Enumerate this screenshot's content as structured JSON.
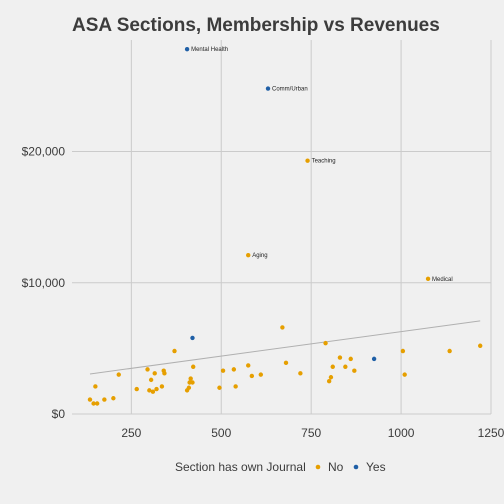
{
  "chart_data": {
    "type": "scatter",
    "title": "ASA Sections, Membership vs Revenues",
    "xlabel": "",
    "ylabel": "",
    "xlim": [
      85,
      1250
    ],
    "ylim": [
      0,
      28500
    ],
    "x_ticks": [
      250,
      500,
      750,
      1000,
      1250
    ],
    "x_tick_labels": [
      "250",
      "500",
      "750",
      "1000",
      "1250"
    ],
    "y_ticks": [
      0,
      10000,
      20000
    ],
    "y_tick_labels": [
      "$0",
      "$10,000",
      "$20,000"
    ],
    "grid": true,
    "legend": {
      "title": "Section has own Journal",
      "placement": "bottom",
      "entries": [
        {
          "label": "No",
          "color": "#e69f00"
        },
        {
          "label": "Yes",
          "color": "#1f5fa6"
        }
      ]
    },
    "series": [
      {
        "name": "No",
        "color": "#e69f00",
        "points": [
          [
            135,
            1100
          ],
          [
            145,
            800
          ],
          [
            150,
            2100
          ],
          [
            155,
            800
          ],
          [
            175,
            1100
          ],
          [
            200,
            1200
          ],
          [
            215,
            3000
          ],
          [
            265,
            1900
          ],
          [
            295,
            3400
          ],
          [
            300,
            1800
          ],
          [
            305,
            2600
          ],
          [
            310,
            1700
          ],
          [
            315,
            3100
          ],
          [
            320,
            1900
          ],
          [
            335,
            2100
          ],
          [
            340,
            3300
          ],
          [
            342,
            3100
          ],
          [
            370,
            4800
          ],
          [
            405,
            1800
          ],
          [
            410,
            2000
          ],
          [
            412,
            2400
          ],
          [
            415,
            2700
          ],
          [
            420,
            2400
          ],
          [
            422,
            3600
          ],
          [
            495,
            2000
          ],
          [
            505,
            3300
          ],
          [
            535,
            3400
          ],
          [
            540,
            2100
          ],
          [
            575,
            3700
          ],
          [
            585,
            2900
          ],
          [
            610,
            3000
          ],
          [
            575,
            12100
          ],
          [
            670,
            6600
          ],
          [
            680,
            3900
          ],
          [
            720,
            3100
          ],
          [
            740,
            19300
          ],
          [
            790,
            5400
          ],
          [
            800,
            2500
          ],
          [
            805,
            2800
          ],
          [
            810,
            3600
          ],
          [
            830,
            4300
          ],
          [
            845,
            3600
          ],
          [
            860,
            4200
          ],
          [
            870,
            3300
          ],
          [
            1005,
            4800
          ],
          [
            1010,
            3000
          ],
          [
            1075,
            10300
          ],
          [
            1135,
            4800
          ],
          [
            1220,
            5200
          ]
        ]
      },
      {
        "name": "Yes",
        "color": "#1f5fa6",
        "points": [
          [
            420,
            5800
          ],
          [
            925,
            4200
          ],
          [
            405,
            27800
          ],
          [
            630,
            24800
          ]
        ]
      }
    ],
    "annotations": [
      {
        "label": "Mental Health",
        "x": 405,
        "y": 27800
      },
      {
        "label": "Comm/Urban",
        "x": 630,
        "y": 24800
      },
      {
        "label": "Teaching",
        "x": 740,
        "y": 19300
      },
      {
        "label": "Aging",
        "x": 575,
        "y": 12100
      },
      {
        "label": "Medical",
        "x": 1075,
        "y": 10300
      }
    ],
    "trend_line": {
      "x": [
        135,
        1220
      ],
      "y": [
        3050,
        7100
      ],
      "color": "#b0b0b0"
    }
  }
}
